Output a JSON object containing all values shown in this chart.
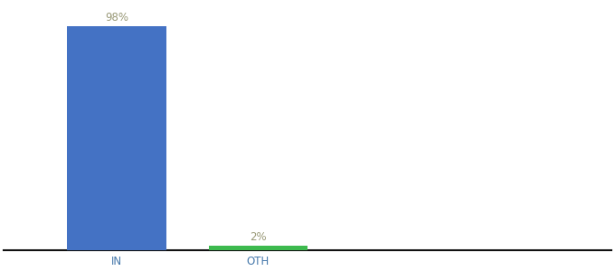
{
  "categories": [
    "IN",
    "OTH"
  ],
  "values": [
    98,
    2
  ],
  "bar_colors": [
    "#4472c4",
    "#3dba4e"
  ],
  "label_color": "#999977",
  "labels": [
    "98%",
    "2%"
  ],
  "background_color": "#ffffff",
  "ylim": [
    0,
    108
  ],
  "label_fontsize": 8.5,
  "tick_fontsize": 8.5,
  "axis_line_color": "#111111",
  "tick_color": "#4477aa",
  "x_positions": [
    1,
    2
  ],
  "bar_width": 0.7,
  "xlim": [
    0.2,
    4.5
  ]
}
